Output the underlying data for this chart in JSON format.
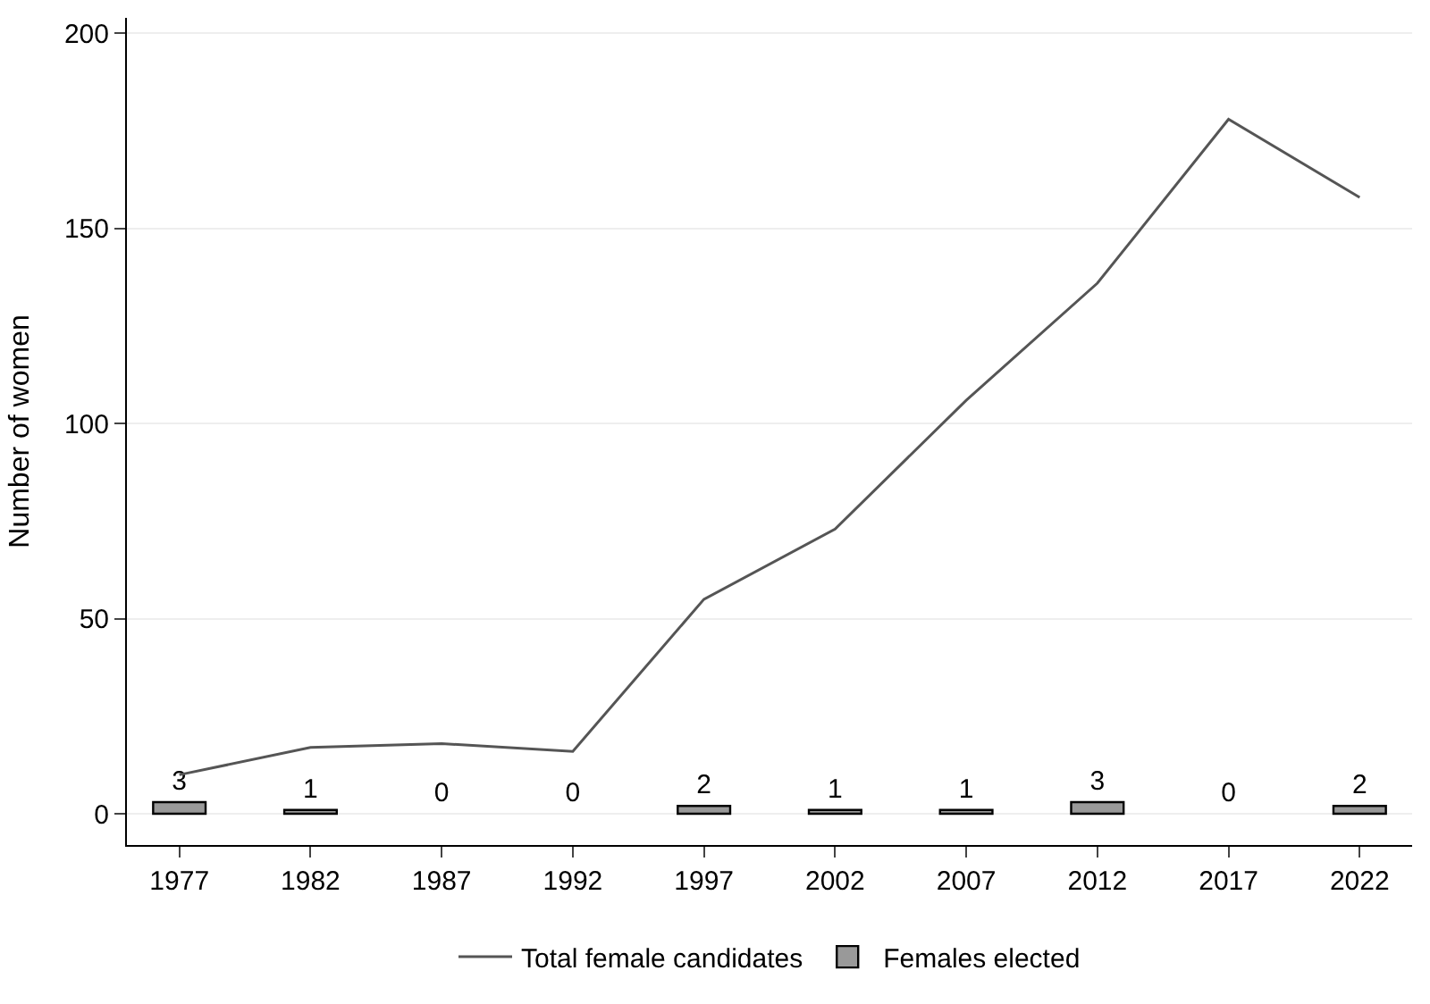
{
  "chart_data": {
    "type": "line",
    "ylabel": "Number of women",
    "x": [
      1977,
      1982,
      1987,
      1992,
      1997,
      2002,
      2007,
      2012,
      2017,
      2022
    ],
    "series": [
      {
        "name": "Total female candidates",
        "color": "#555555",
        "values": [
          10,
          17,
          18,
          16,
          55,
          73,
          106,
          136,
          178,
          158
        ]
      },
      {
        "name": "Females elected",
        "type": "bar",
        "color": "#999999",
        "values": [
          3,
          1,
          0,
          0,
          2,
          1,
          1,
          3,
          0,
          2
        ],
        "value_labels": [
          "3",
          "1",
          "0",
          "0",
          "2",
          "1",
          "1",
          "3",
          "0",
          "2"
        ]
      }
    ],
    "xlim": [
      1975,
      2024
    ],
    "ylim": [
      -8,
      204
    ],
    "xticks": [
      1977,
      1982,
      1987,
      1992,
      1997,
      2002,
      2007,
      2012,
      2017,
      2022
    ],
    "yticks": [
      0,
      50,
      100,
      150,
      200
    ],
    "grid": "y",
    "legend": "bottom",
    "marker": "none",
    "line_style": "solid"
  }
}
